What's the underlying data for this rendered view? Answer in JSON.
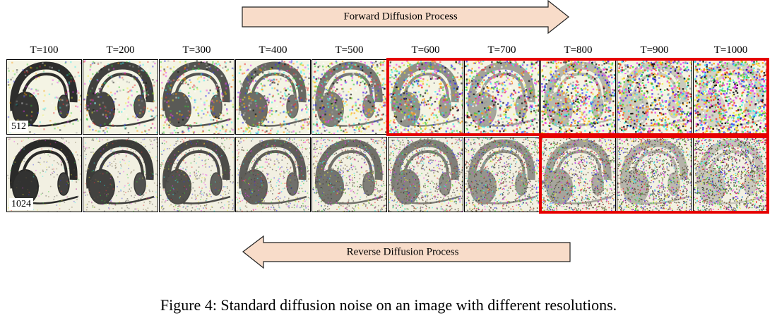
{
  "figure": {
    "forward_label": "Forward Diffusion Process",
    "reverse_label": "Reverse Diffusion Process",
    "timesteps": [
      "T=100",
      "T=200",
      "T=300",
      "T=400",
      "T=500",
      "T=600",
      "T=700",
      "T=800",
      "T=900",
      "T=1000"
    ],
    "rows": [
      {
        "resolution": "512",
        "highlight_from_index": 5
      },
      {
        "resolution": "1024",
        "highlight_from_index": 7
      }
    ],
    "caption": "Figure 4: Standard diffusion noise on an image with different resolutions.",
    "colors": {
      "arrow_fill": "#f8dcc9",
      "highlight": "#e60000"
    }
  }
}
